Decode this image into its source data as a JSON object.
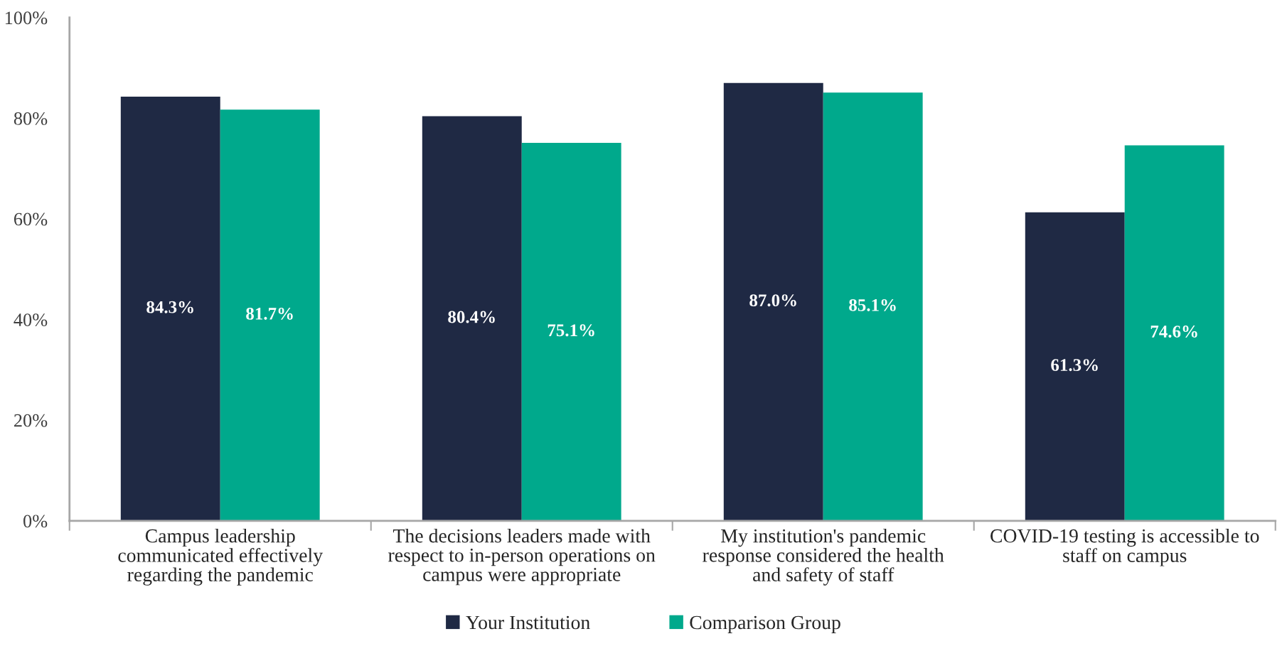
{
  "chart_data": {
    "type": "bar",
    "categories": [
      "Campus leadership communicated effectively regarding the pandemic",
      "The decisions leaders made with respect to in-person operations on campus were appropriate",
      "My institution's pandemic response considered the health and safety of staff",
      "COVID-19 testing is accessible to staff on campus"
    ],
    "series": [
      {
        "name": "Your Institution",
        "color": "#1f2944",
        "values": [
          84.3,
          80.4,
          87.0,
          61.3
        ],
        "value_labels": [
          "84.3%",
          "80.4%",
          "87.0%",
          "61.3%"
        ]
      },
      {
        "name": "Comparison Group",
        "color": "#00a98c",
        "values": [
          81.7,
          75.1,
          85.1,
          74.6
        ],
        "value_labels": [
          "81.7%",
          "75.1%",
          "85.1%",
          "74.6%"
        ]
      }
    ],
    "ylim": [
      0,
      100
    ],
    "yticks": [
      {
        "value": 0,
        "label": "0%"
      },
      {
        "value": 20,
        "label": "20%"
      },
      {
        "value": 40,
        "label": "40%"
      },
      {
        "value": 60,
        "label": "60%"
      },
      {
        "value": 80,
        "label": "80%"
      },
      {
        "value": 100,
        "label": "100%"
      }
    ],
    "grid": false,
    "legend": "bottom"
  }
}
